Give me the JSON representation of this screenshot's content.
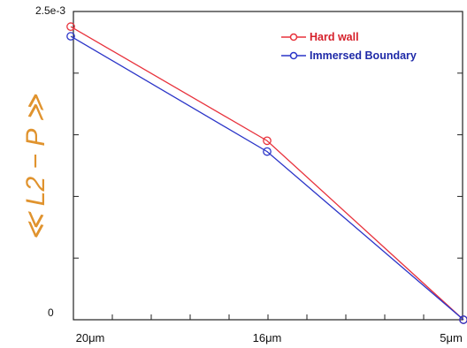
{
  "chart_data": {
    "type": "line",
    "title": "",
    "xlabel": "",
    "ylabel": "≪ L2 − P ≫",
    "categories": [
      "20μm",
      "16μm",
      "5μm"
    ],
    "ylim": [
      0,
      0.0025
    ],
    "y_tick_labels": {
      "top": "2.5e-3",
      "bottom": "0"
    },
    "grid": false,
    "legend_position": "top-right",
    "series": [
      {
        "name": "Hard wall",
        "color": "#e8323c",
        "values": [
          0.00244,
          0.00149,
          0.0
        ]
      },
      {
        "name": "Immersed Boundary",
        "color": "#2b35c8",
        "values": [
          0.00236,
          0.0014,
          0.0
        ]
      }
    ]
  }
}
